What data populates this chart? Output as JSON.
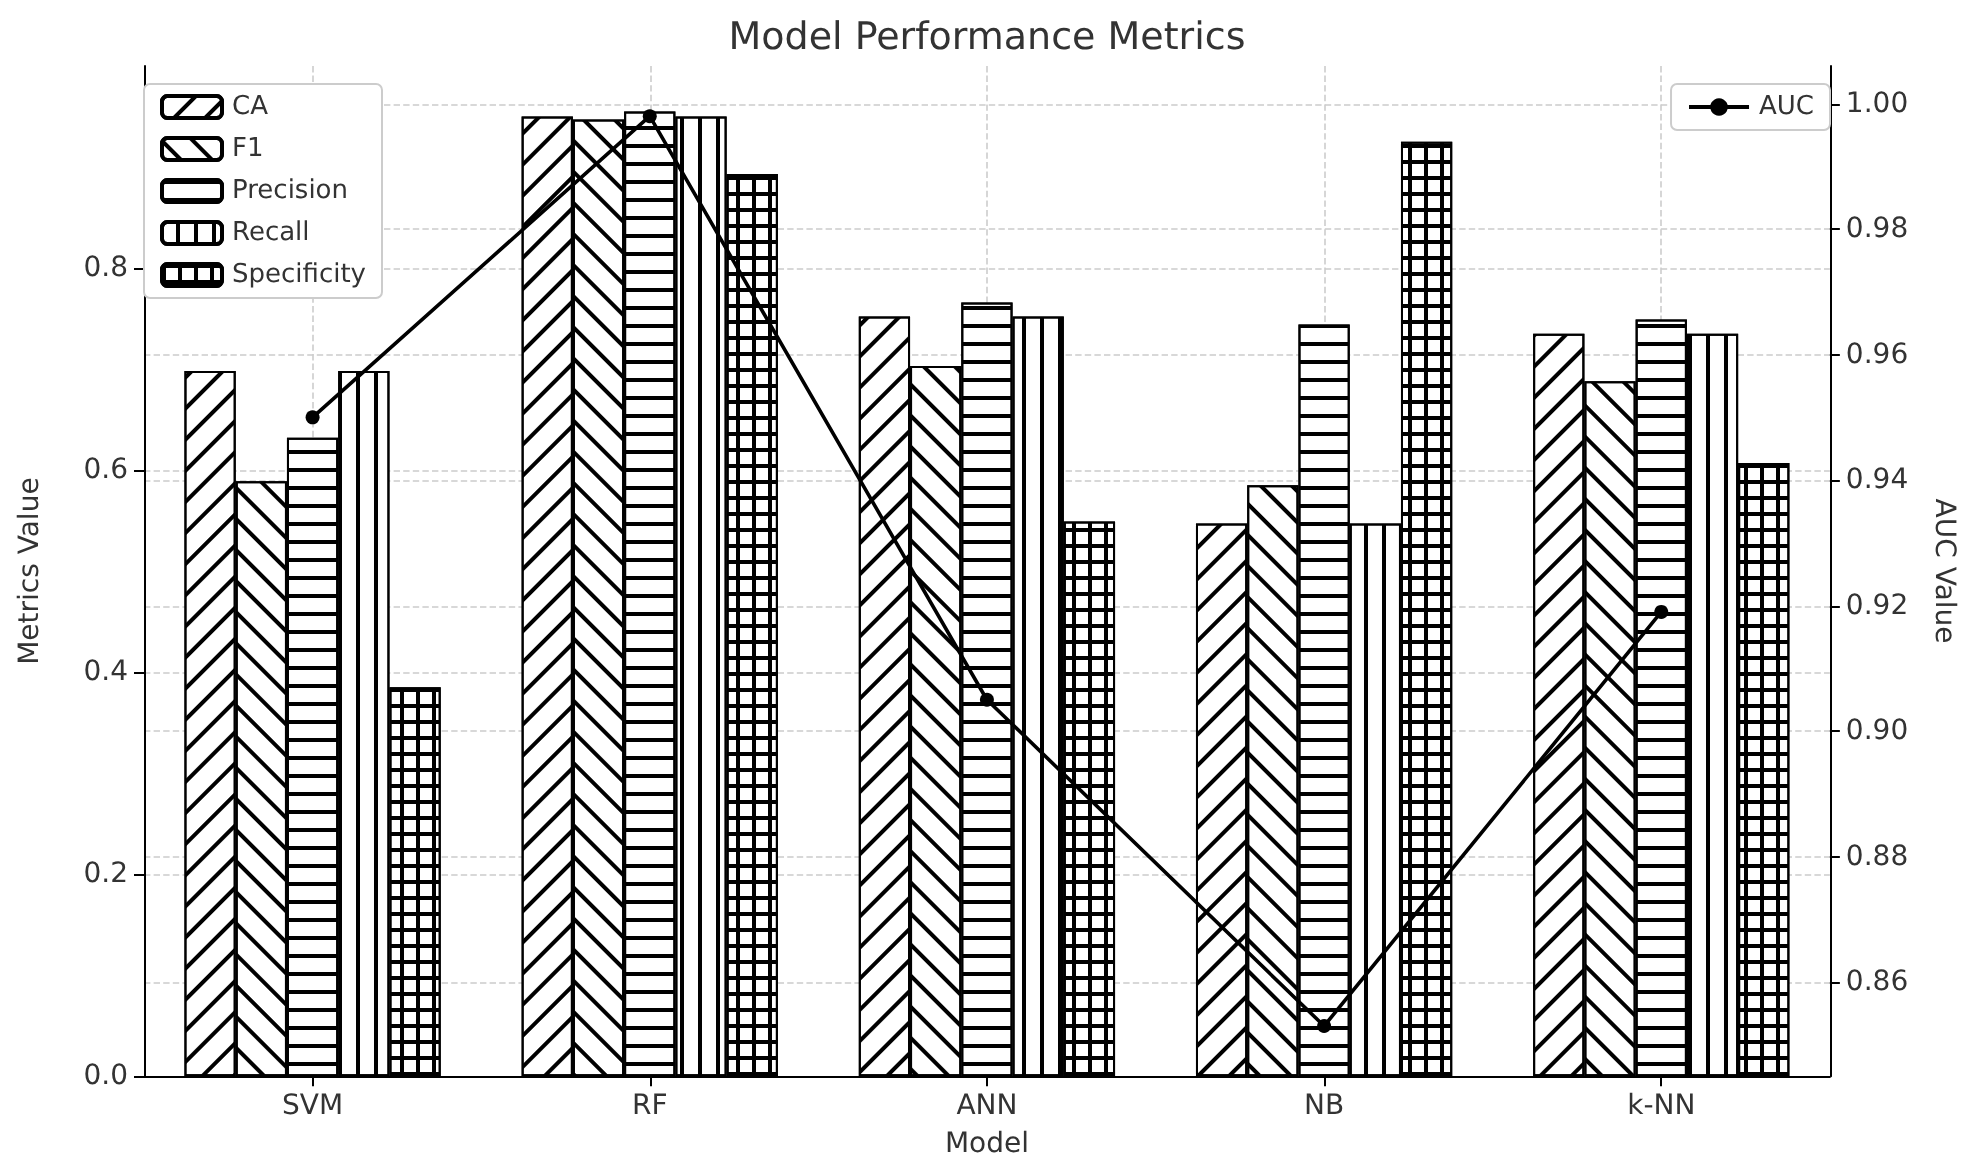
{
  "chart_data": {
    "type": "bar",
    "title": "Model Performance Metrics",
    "xlabel": "Model",
    "ylabel": "Metrics Value",
    "y2label": "AUC Value",
    "categories": [
      "SVM",
      "RF",
      "ANN",
      "NB",
      "k-NN"
    ],
    "series": [
      {
        "name": "CA",
        "color": "#ffffff",
        "values": [
          0.698,
          0.95,
          0.752,
          0.547,
          0.735
        ]
      },
      {
        "name": "F1",
        "color": "#ffffff",
        "values": [
          0.589,
          0.947,
          0.703,
          0.585,
          0.688
        ]
      },
      {
        "name": "Precision",
        "color": "#ffffff",
        "values": [
          0.632,
          0.955,
          0.766,
          0.744,
          0.749
        ]
      },
      {
        "name": "Recall",
        "color": "#ffffff",
        "values": [
          0.698,
          0.95,
          0.752,
          0.547,
          0.735
        ]
      },
      {
        "name": "Specificity",
        "color": "#ffffff",
        "values": [
          0.385,
          0.893,
          0.549,
          0.925,
          0.607
        ]
      },
      {
        "name": "AUC",
        "type": "line",
        "axis": "y2",
        "color": "#000000",
        "marker": "circle",
        "line_style": "solid",
        "values": [
          0.95,
          0.998,
          0.905,
          0.853,
          0.919
        ]
      }
    ],
    "ylim": [
      0,
      1.0
    ],
    "yticks": [
      {
        "value": 0,
        "label": "0.0"
      },
      0.2,
      0.4,
      0.6,
      0.8
    ],
    "y2lim": [
      0.845,
      1.006
    ],
    "y2ticks": [
      0.86,
      0.88,
      {
        "value": 0.9,
        "label": "0.90"
      },
      0.92,
      0.94,
      0.96,
      0.98,
      {
        "value": 1.0,
        "label": "1.00"
      }
    ],
    "grid": true,
    "legend": "top left"
  }
}
